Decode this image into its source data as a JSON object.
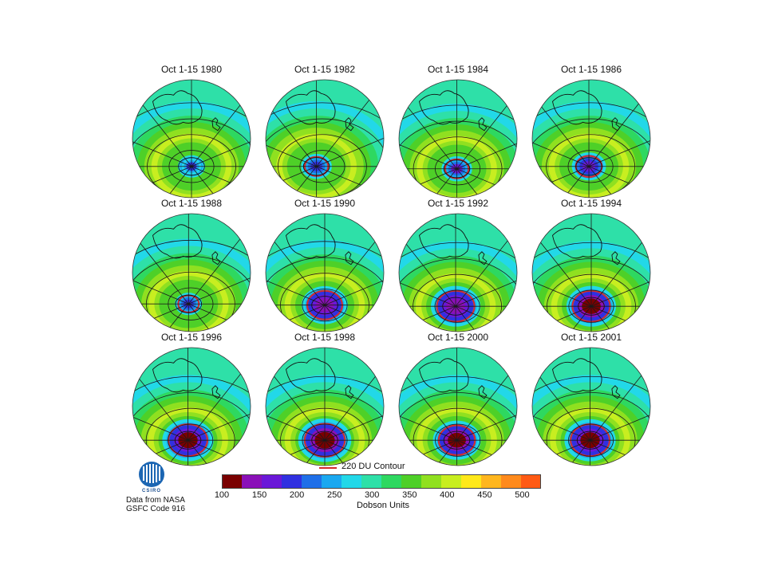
{
  "panels": [
    {
      "title": "Oct 1-15 1980",
      "year": 1980,
      "min_du": 205,
      "hole_size": 0.16,
      "offset": [
        0.0,
        0.02
      ],
      "contour": false
    },
    {
      "title": "Oct 1-15 1982",
      "year": 1982,
      "min_du": 185,
      "hole_size": 0.18,
      "offset": [
        -0.14,
        0.02
      ],
      "contour": true
    },
    {
      "title": "Oct 1-15 1984",
      "year": 1984,
      "min_du": 175,
      "hole_size": 0.18,
      "offset": [
        -0.02,
        0.06
      ],
      "contour": true
    },
    {
      "title": "Oct 1-15 1986",
      "year": 1986,
      "min_du": 170,
      "hole_size": 0.2,
      "offset": [
        -0.04,
        0.02
      ],
      "contour": true
    },
    {
      "title": "Oct 1-15 1988",
      "year": 1988,
      "min_du": 195,
      "hole_size": 0.16,
      "offset": [
        -0.05,
        0.08
      ],
      "contour": true
    },
    {
      "title": "Oct 1-15 1990",
      "year": 1990,
      "min_du": 140,
      "hole_size": 0.27,
      "offset": [
        0.0,
        0.1
      ],
      "contour": true
    },
    {
      "title": "Oct 1-15 1992",
      "year": 1992,
      "min_du": 135,
      "hole_size": 0.29,
      "offset": [
        -0.04,
        0.12
      ],
      "contour": true
    },
    {
      "title": "Oct 1-15 1994",
      "year": 1994,
      "min_du": 115,
      "hole_size": 0.29,
      "offset": [
        0.0,
        0.12
      ],
      "contour": true
    },
    {
      "title": "Oct 1-15 1996",
      "year": 1996,
      "min_du": 125,
      "hole_size": 0.3,
      "offset": [
        -0.06,
        0.12
      ],
      "contour": true
    },
    {
      "title": "Oct 1-15 1998",
      "year": 1998,
      "min_du": 105,
      "hole_size": 0.31,
      "offset": [
        0.0,
        0.12
      ],
      "contour": true
    },
    {
      "title": "Oct 1-15 2000",
      "year": 2000,
      "min_du": 115,
      "hole_size": 0.28,
      "offset": [
        -0.02,
        0.12
      ],
      "contour": true
    },
    {
      "title": "Oct 1-15 2001",
      "year": 2001,
      "min_du": 125,
      "hole_size": 0.3,
      "offset": [
        -0.02,
        0.12
      ],
      "contour": true
    }
  ],
  "legend": {
    "contour_label": "220 DU Contour",
    "contour_value": 220,
    "contour_color": "#d42a2a",
    "units_label": "Dobson Units",
    "tick_labels": [
      "100",
      "150",
      "200",
      "250",
      "300",
      "350",
      "400",
      "450",
      "500"
    ],
    "range": [
      100,
      525
    ],
    "colors": [
      "#7a0000",
      "#8a10b8",
      "#6a18d8",
      "#3030e0",
      "#1f6fe8",
      "#1aa8f0",
      "#22d8e8",
      "#2ee0a8",
      "#2ed860",
      "#4ed028",
      "#90e020",
      "#c8ee20",
      "#ffe81a",
      "#ffb61e",
      "#ff8a1c",
      "#ff5a14"
    ]
  },
  "logo": {
    "text": "CSIRO"
  },
  "credit": {
    "line1": "Data from NASA",
    "line2": "GSFC Code 916"
  },
  "colors": {
    "contour": "#d42a2a",
    "land_outline": "#111111",
    "grid": "#1a1a1a"
  }
}
